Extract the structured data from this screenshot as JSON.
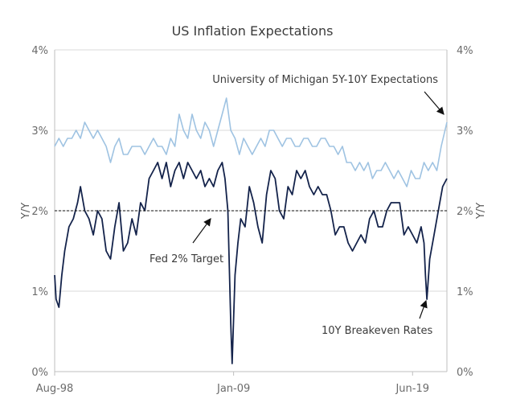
{
  "chart_data": {
    "type": "line",
    "title": "US Inflation Expectations",
    "ylabel_left": "Y/Y",
    "ylabel_right": "Y/Y",
    "ylim": [
      0,
      4
    ],
    "y_ticks": [
      "0%",
      "1%",
      "2%",
      "3%",
      "4%"
    ],
    "x_ticks": [
      "Aug-98",
      "Jan-09",
      "Jun-19"
    ],
    "grid": "horizontal",
    "colors": {
      "michigan": "#9fc3e2",
      "breakeven": "#14234b",
      "target": "#111111",
      "grid": "#d9d9d9"
    },
    "x_range": [
      "1998-08",
      "2021-06"
    ],
    "series": [
      {
        "name": "University of Michigan 5Y-10Y Expectations",
        "x": [
          "1998-08",
          "1998-11",
          "1999-02",
          "1999-05",
          "1999-08",
          "1999-11",
          "2000-02",
          "2000-05",
          "2000-08",
          "2000-11",
          "2001-02",
          "2001-05",
          "2001-08",
          "2001-11",
          "2002-02",
          "2002-05",
          "2002-08",
          "2002-11",
          "2003-02",
          "2003-05",
          "2003-08",
          "2003-11",
          "2004-02",
          "2004-05",
          "2004-08",
          "2004-11",
          "2005-02",
          "2005-05",
          "2005-08",
          "2005-11",
          "2006-02",
          "2006-05",
          "2006-08",
          "2006-11",
          "2007-02",
          "2007-05",
          "2007-08",
          "2007-11",
          "2008-02",
          "2008-05",
          "2008-08",
          "2008-11",
          "2009-02",
          "2009-05",
          "2009-08",
          "2009-11",
          "2010-02",
          "2010-05",
          "2010-08",
          "2010-11",
          "2011-02",
          "2011-05",
          "2011-08",
          "2011-11",
          "2012-02",
          "2012-05",
          "2012-08",
          "2012-11",
          "2013-02",
          "2013-05",
          "2013-08",
          "2013-11",
          "2014-02",
          "2014-05",
          "2014-08",
          "2014-11",
          "2015-02",
          "2015-05",
          "2015-08",
          "2015-11",
          "2016-02",
          "2016-05",
          "2016-08",
          "2016-11",
          "2017-02",
          "2017-05",
          "2017-08",
          "2017-11",
          "2018-02",
          "2018-05",
          "2018-08",
          "2018-11",
          "2019-02",
          "2019-05",
          "2019-08",
          "2019-11",
          "2020-02",
          "2020-05",
          "2020-08",
          "2020-11",
          "2021-02",
          "2021-06"
        ],
        "values": [
          2.8,
          2.9,
          2.8,
          2.9,
          2.9,
          3.0,
          2.9,
          3.1,
          3.0,
          2.9,
          3.0,
          2.9,
          2.8,
          2.6,
          2.8,
          2.9,
          2.7,
          2.7,
          2.8,
          2.8,
          2.8,
          2.7,
          2.8,
          2.9,
          2.8,
          2.8,
          2.7,
          2.9,
          2.8,
          3.2,
          3.0,
          2.9,
          3.2,
          3.0,
          2.9,
          3.1,
          3.0,
          2.8,
          3.0,
          3.2,
          3.4,
          3.0,
          2.9,
          2.7,
          2.9,
          2.8,
          2.7,
          2.8,
          2.9,
          2.8,
          3.0,
          3.0,
          2.9,
          2.8,
          2.9,
          2.9,
          2.8,
          2.8,
          2.9,
          2.9,
          2.8,
          2.8,
          2.9,
          2.9,
          2.8,
          2.8,
          2.7,
          2.8,
          2.6,
          2.6,
          2.5,
          2.6,
          2.5,
          2.6,
          2.4,
          2.5,
          2.5,
          2.6,
          2.5,
          2.4,
          2.5,
          2.4,
          2.3,
          2.5,
          2.4,
          2.4,
          2.6,
          2.5,
          2.6,
          2.5,
          2.8,
          3.1
        ]
      },
      {
        "name": "10Y Breakeven Rates",
        "x": [
          "1998-08",
          "1998-09",
          "1998-11",
          "1999-01",
          "1999-03",
          "1999-06",
          "1999-09",
          "1999-12",
          "2000-02",
          "2000-05",
          "2000-08",
          "2000-11",
          "2001-02",
          "2001-05",
          "2001-08",
          "2001-11",
          "2002-02",
          "2002-05",
          "2002-08",
          "2002-11",
          "2003-02",
          "2003-05",
          "2003-08",
          "2003-11",
          "2004-02",
          "2004-05",
          "2004-08",
          "2004-11",
          "2005-02",
          "2005-05",
          "2005-08",
          "2005-11",
          "2006-02",
          "2006-05",
          "2006-08",
          "2006-11",
          "2007-02",
          "2007-05",
          "2007-08",
          "2007-11",
          "2008-02",
          "2008-05",
          "2008-07",
          "2008-09",
          "2008-10",
          "2008-11",
          "2008-12",
          "2009-02",
          "2009-04",
          "2009-06",
          "2009-09",
          "2009-12",
          "2010-03",
          "2010-06",
          "2010-09",
          "2010-12",
          "2011-03",
          "2011-06",
          "2011-09",
          "2011-12",
          "2012-03",
          "2012-06",
          "2012-09",
          "2012-12",
          "2013-03",
          "2013-06",
          "2013-09",
          "2013-12",
          "2014-03",
          "2014-06",
          "2014-09",
          "2014-12",
          "2015-03",
          "2015-06",
          "2015-09",
          "2015-12",
          "2016-03",
          "2016-06",
          "2016-09",
          "2016-12",
          "2017-03",
          "2017-06",
          "2017-09",
          "2017-12",
          "2018-03",
          "2018-06",
          "2018-09",
          "2018-12",
          "2019-03",
          "2019-06",
          "2019-09",
          "2019-12",
          "2020-02",
          "2020-03",
          "2020-04",
          "2020-06",
          "2020-09",
          "2020-12",
          "2021-03",
          "2021-06"
        ],
        "values": [
          1.2,
          0.9,
          0.8,
          1.2,
          1.5,
          1.8,
          1.9,
          2.1,
          2.3,
          2.0,
          1.9,
          1.7,
          2.0,
          1.9,
          1.5,
          1.4,
          1.8,
          2.1,
          1.5,
          1.6,
          1.9,
          1.7,
          2.1,
          2.0,
          2.4,
          2.5,
          2.6,
          2.4,
          2.6,
          2.3,
          2.5,
          2.6,
          2.4,
          2.6,
          2.5,
          2.4,
          2.5,
          2.3,
          2.4,
          2.3,
          2.5,
          2.6,
          2.4,
          2.0,
          1.3,
          0.6,
          0.1,
          1.2,
          1.6,
          1.9,
          1.8,
          2.3,
          2.1,
          1.8,
          1.6,
          2.2,
          2.5,
          2.4,
          2.0,
          1.9,
          2.3,
          2.2,
          2.5,
          2.4,
          2.5,
          2.3,
          2.2,
          2.3,
          2.2,
          2.2,
          2.0,
          1.7,
          1.8,
          1.8,
          1.6,
          1.5,
          1.6,
          1.7,
          1.6,
          1.9,
          2.0,
          1.8,
          1.8,
          2.0,
          2.1,
          2.1,
          2.1,
          1.7,
          1.8,
          1.7,
          1.6,
          1.8,
          1.6,
          1.2,
          0.9,
          1.4,
          1.7,
          2.0,
          2.3,
          2.4
        ]
      }
    ],
    "reference_line": {
      "label": "Fed 2% Target",
      "value": 2.0
    },
    "annotations": [
      {
        "text": "University of Michigan 5Y-10Y Expectations"
      },
      {
        "text": "Fed 2% Target"
      },
      {
        "text": "10Y Breakeven Rates"
      }
    ]
  }
}
